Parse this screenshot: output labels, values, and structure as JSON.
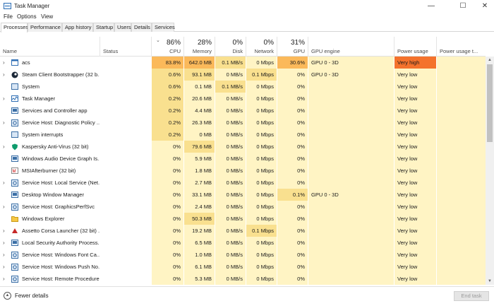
{
  "window": {
    "title": "Task Manager",
    "min": "—",
    "max": "☐",
    "close": "✕"
  },
  "menu": [
    "File",
    "Options",
    "View"
  ],
  "tabs": [
    "Processes",
    "Performance",
    "App history",
    "Startup",
    "Users",
    "Details",
    "Services"
  ],
  "columns": {
    "name": {
      "label": "Name"
    },
    "status": {
      "label": "Status"
    },
    "cpu": {
      "pct": "86%",
      "label": "CPU"
    },
    "memory": {
      "pct": "28%",
      "label": "Memory"
    },
    "disk": {
      "pct": "0%",
      "label": "Disk"
    },
    "network": {
      "pct": "0%",
      "label": "Network"
    },
    "gpu": {
      "pct": "31%",
      "label": "GPU"
    },
    "gpu_engine": {
      "label": "GPU engine"
    },
    "power": {
      "label": "Power usage"
    },
    "power_trend": {
      "label": "Power usage t..."
    }
  },
  "processes": [
    {
      "icon": "window-icon",
      "expand": true,
      "name": "acs",
      "cpu": "83.8%",
      "memory": "642.0 MB",
      "disk": "0.1 MB/s",
      "network": "0 Mbps",
      "gpu": "30.6%",
      "gpu_engine": "GPU 0 - 3D",
      "power": "Very high",
      "hot": true
    },
    {
      "icon": "steam-icon",
      "expand": true,
      "name": "Steam Client Bootstrapper (32 b...",
      "cpu": "0.6%",
      "memory": "93.1 MB",
      "disk": "0 MB/s",
      "network": "0.1 Mbps",
      "gpu": "0%",
      "gpu_engine": "GPU 0 - 3D",
      "power": "Very low"
    },
    {
      "icon": "system-icon",
      "expand": false,
      "name": "System",
      "cpu": "0.6%",
      "memory": "0.1 MB",
      "disk": "0.1 MB/s",
      "network": "0 Mbps",
      "gpu": "0%",
      "gpu_engine": "",
      "power": "Very low"
    },
    {
      "icon": "task-manager-icon",
      "expand": true,
      "name": "Task Manager",
      "cpu": "0.2%",
      "memory": "20.6 MB",
      "disk": "0 MB/s",
      "network": "0 Mbps",
      "gpu": "0%",
      "gpu_engine": "",
      "power": "Very low"
    },
    {
      "icon": "service-icon",
      "expand": false,
      "name": "Services and Controller app",
      "cpu": "0.2%",
      "memory": "4.4 MB",
      "disk": "0 MB/s",
      "network": "0 Mbps",
      "gpu": "0%",
      "gpu_engine": "",
      "power": "Very low"
    },
    {
      "icon": "gear-icon",
      "expand": true,
      "name": "Service Host: Diagnostic Policy ...",
      "cpu": "0.2%",
      "memory": "26.3 MB",
      "disk": "0 MB/s",
      "network": "0 Mbps",
      "gpu": "0%",
      "gpu_engine": "",
      "power": "Very low"
    },
    {
      "icon": "system-icon",
      "expand": false,
      "name": "System interrupts",
      "cpu": "0.2%",
      "memory": "0 MB",
      "disk": "0 MB/s",
      "network": "0 Mbps",
      "gpu": "0%",
      "gpu_engine": "",
      "power": "Very low"
    },
    {
      "icon": "shield-icon",
      "expand": true,
      "name": "Kaspersky Anti-Virus (32 bit)",
      "cpu": "0%",
      "memory": "79.6 MB",
      "disk": "0 MB/s",
      "network": "0 Mbps",
      "gpu": "0%",
      "gpu_engine": "",
      "power": "Very low"
    },
    {
      "icon": "service-icon",
      "expand": false,
      "name": "Windows Audio Device Graph Is...",
      "cpu": "0%",
      "memory": "5.9 MB",
      "disk": "0 MB/s",
      "network": "0 Mbps",
      "gpu": "0%",
      "gpu_engine": "",
      "power": "Very low"
    },
    {
      "icon": "afterburner-icon",
      "expand": false,
      "name": "MSIAfterburner (32 bit)",
      "cpu": "0%",
      "memory": "1.8 MB",
      "disk": "0 MB/s",
      "network": "0 Mbps",
      "gpu": "0%",
      "gpu_engine": "",
      "power": "Very low"
    },
    {
      "icon": "gear-icon",
      "expand": true,
      "name": "Service Host: Local Service (Net...",
      "cpu": "0%",
      "memory": "2.7 MB",
      "disk": "0 MB/s",
      "network": "0 Mbps",
      "gpu": "0%",
      "gpu_engine": "",
      "power": "Very low"
    },
    {
      "icon": "service-icon",
      "expand": false,
      "name": "Desktop Window Manager",
      "cpu": "0%",
      "memory": "33.1 MB",
      "disk": "0 MB/s",
      "network": "0 Mbps",
      "gpu": "0.1%",
      "gpu_engine": "GPU 0 - 3D",
      "power": "Very low",
      "gpu_hot": true
    },
    {
      "icon": "gear-icon",
      "expand": true,
      "name": "Service Host: GraphicsPerfSvc",
      "cpu": "0%",
      "memory": "2.4 MB",
      "disk": "0 MB/s",
      "network": "0 Mbps",
      "gpu": "0%",
      "gpu_engine": "",
      "power": "Very low"
    },
    {
      "icon": "folder-icon",
      "expand": false,
      "name": "Windows Explorer",
      "cpu": "0%",
      "memory": "50.3 MB",
      "disk": "0 MB/s",
      "network": "0 Mbps",
      "gpu": "0%",
      "gpu_engine": "",
      "power": "Very low"
    },
    {
      "icon": "assetto-icon",
      "expand": true,
      "name": "Assetto Corsa Launcher (32 bit) ...",
      "cpu": "0%",
      "memory": "19.2 MB",
      "disk": "0 MB/s",
      "network": "0.1 Mbps",
      "gpu": "0%",
      "gpu_engine": "",
      "power": "Very low"
    },
    {
      "icon": "service-icon",
      "expand": true,
      "name": "Local Security Authority Process...",
      "cpu": "0%",
      "memory": "6.5 MB",
      "disk": "0 MB/s",
      "network": "0 Mbps",
      "gpu": "0%",
      "gpu_engine": "",
      "power": "Very low"
    },
    {
      "icon": "gear-icon",
      "expand": true,
      "name": "Service Host: Windows Font Ca...",
      "cpu": "0%",
      "memory": "1.0 MB",
      "disk": "0 MB/s",
      "network": "0 Mbps",
      "gpu": "0%",
      "gpu_engine": "",
      "power": "Very low"
    },
    {
      "icon": "gear-icon",
      "expand": true,
      "name": "Service Host: Windows Push No...",
      "cpu": "0%",
      "memory": "6.1 MB",
      "disk": "0 MB/s",
      "network": "0 Mbps",
      "gpu": "0%",
      "gpu_engine": "",
      "power": "Very low"
    },
    {
      "icon": "gear-icon",
      "expand": true,
      "name": "Service Host: Remote Procedure...",
      "cpu": "0%",
      "memory": "5.3 MB",
      "disk": "0 MB/s",
      "network": "0 Mbps",
      "gpu": "0%",
      "gpu_engine": "",
      "power": "Very low"
    }
  ],
  "footer": {
    "fewer_details": "Fewer details",
    "end_task": "End task"
  },
  "colors": {
    "heat_low": "#fff4c4",
    "heat_mid": "#f9e08f",
    "heat_high": "#fbb95a",
    "power_very_high": "#f4722c",
    "power_low": "#fff4c4"
  }
}
